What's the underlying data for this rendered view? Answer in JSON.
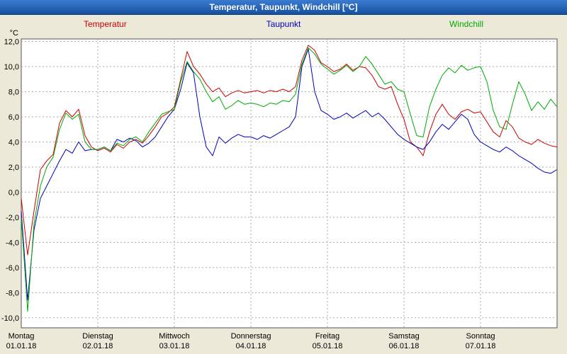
{
  "window": {
    "title": "Temperatur, Taupunkt, Windchill [°C]"
  },
  "legend": [
    {
      "label": "Temperatur",
      "color": "#cc0000"
    },
    {
      "label": "Taupunkt",
      "color": "#0000bb"
    },
    {
      "label": "Windchill",
      "color": "#00aa00"
    }
  ],
  "y_axis": {
    "unit_label": "°C",
    "ticks": [
      12,
      10,
      8,
      6,
      4,
      2,
      0,
      -2,
      -4,
      -6,
      -8,
      -10
    ],
    "tick_labels": [
      "12,0",
      "10,0",
      "8,0",
      "6,0",
      "4,0",
      "2,0",
      "0,0",
      "-2,0",
      "-4,0",
      "-6,0",
      "-8,0",
      "-10,0"
    ]
  },
  "x_axis": {
    "days": [
      {
        "name": "Montag",
        "date": "01.01.18"
      },
      {
        "name": "Dienstag",
        "date": "02.01.18"
      },
      {
        "name": "Mittwoch",
        "date": "03.01.18"
      },
      {
        "name": "Donnerstag",
        "date": "04.01.18"
      },
      {
        "name": "Freitag",
        "date": "05.01.18"
      },
      {
        "name": "Samstag",
        "date": "06.01.18"
      },
      {
        "name": "Sonntag",
        "date": "07.01.18"
      }
    ]
  },
  "colors": {
    "background": "#ece9d8",
    "titlebar": "#17519f",
    "plot_background": "#ffffff",
    "grid": "#aaaaaa",
    "plot_border": "#555555"
  },
  "chart_data": {
    "type": "line",
    "title": "Temperatur, Taupunkt, Windchill [°C]",
    "grid": true,
    "legend_position": "top",
    "x_unit": "hours",
    "x_start_hours": 0,
    "x_step_hours": 2,
    "x_total_hours": 168,
    "x_categories_days": [
      "Montag 01.01.18",
      "Dienstag 02.01.18",
      "Mittwoch 03.01.18",
      "Donnerstag 04.01.18",
      "Freitag 05.01.18",
      "Samstag 06.01.18",
      "Sonntag 07.01.18"
    ],
    "ylabel": "°C",
    "ylim": [
      -10,
      12
    ],
    "y_tick_step": 2,
    "series": [
      {
        "name": "Temperatur",
        "color": "#cc0000",
        "values": [
          -0.5,
          -5.0,
          -1.5,
          1.8,
          2.5,
          3.0,
          5.5,
          6.5,
          6.0,
          6.6,
          4.5,
          3.6,
          3.3,
          3.5,
          3.2,
          3.8,
          3.5,
          4.0,
          4.2,
          3.9,
          4.5,
          5.2,
          6.0,
          6.3,
          6.8,
          9.0,
          11.2,
          10.0,
          9.4,
          8.6,
          8.0,
          8.3,
          7.6,
          7.9,
          8.1,
          7.9,
          8.0,
          8.1,
          7.9,
          8.1,
          8.0,
          8.2,
          8.0,
          8.4,
          10.5,
          11.7,
          11.3,
          10.3,
          10.0,
          9.6,
          9.8,
          10.2,
          9.7,
          10.0,
          9.9,
          9.3,
          8.4,
          8.2,
          8.4,
          7.0,
          5.8,
          4.0,
          3.6,
          2.9,
          4.8,
          6.2,
          7.0,
          6.2,
          5.8,
          6.4,
          6.6,
          6.3,
          6.4,
          5.6,
          4.8,
          4.4,
          5.7,
          5.2,
          4.3,
          4.0,
          3.8,
          4.2,
          3.9,
          3.7,
          3.6
        ]
      },
      {
        "name": "Taupunkt",
        "color": "#0000bb",
        "values": [
          -1.5,
          -8.6,
          -3.0,
          -0.5,
          0.5,
          1.5,
          2.5,
          3.4,
          3.1,
          4.0,
          3.3,
          3.4,
          3.4,
          3.6,
          3.3,
          4.2,
          4.0,
          4.3,
          4.1,
          3.6,
          3.9,
          4.4,
          5.2,
          6.0,
          6.6,
          8.2,
          10.3,
          9.5,
          6.0,
          3.6,
          2.9,
          4.4,
          3.9,
          4.3,
          4.6,
          4.4,
          4.4,
          4.2,
          4.5,
          4.3,
          4.6,
          4.9,
          5.2,
          6.0,
          10.0,
          11.4,
          8.0,
          6.5,
          6.2,
          5.8,
          6.0,
          6.3,
          5.9,
          6.2,
          6.5,
          6.0,
          6.3,
          5.8,
          5.2,
          4.6,
          4.2,
          3.9,
          3.6,
          3.4,
          4.0,
          4.8,
          5.4,
          5.0,
          5.6,
          6.2,
          5.8,
          4.6,
          4.0,
          3.7,
          3.4,
          3.2,
          3.6,
          3.3,
          2.9,
          2.6,
          2.3,
          1.9,
          1.6,
          1.5,
          1.8
        ]
      },
      {
        "name": "Windchill",
        "color": "#00aa00",
        "values": [
          -2.0,
          -9.5,
          -2.5,
          0.5,
          2.0,
          2.8,
          5.0,
          6.3,
          5.8,
          6.2,
          4.0,
          3.4,
          3.4,
          3.6,
          3.3,
          3.9,
          3.7,
          4.2,
          4.4,
          4.0,
          4.8,
          5.5,
          6.2,
          6.4,
          6.6,
          8.8,
          10.4,
          9.6,
          9.0,
          8.0,
          7.2,
          7.6,
          6.6,
          6.9,
          7.3,
          7.0,
          7.1,
          7.0,
          6.8,
          7.1,
          7.0,
          7.3,
          7.2,
          7.8,
          10.2,
          11.5,
          11.0,
          10.2,
          9.8,
          9.4,
          9.7,
          10.1,
          9.6,
          10.0,
          10.8,
          10.2,
          9.4,
          8.6,
          8.8,
          8.2,
          8.0,
          6.2,
          4.5,
          4.4,
          6.8,
          8.2,
          9.3,
          9.9,
          9.5,
          10.1,
          9.7,
          9.9,
          10.0,
          8.8,
          6.5,
          5.2,
          5.0,
          7.0,
          8.8,
          7.8,
          6.5,
          7.2,
          6.6,
          7.4,
          6.8
        ]
      }
    ]
  }
}
